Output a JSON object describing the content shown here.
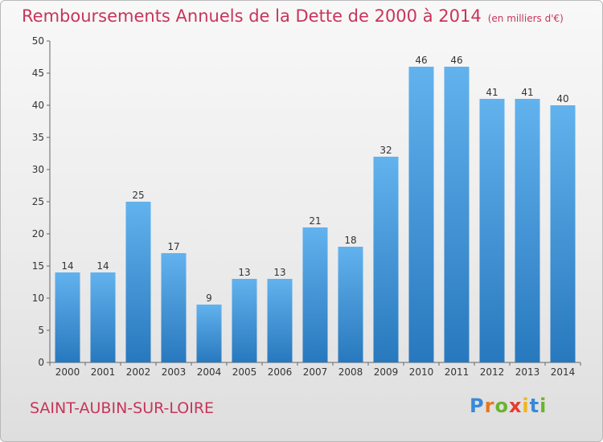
{
  "header": {
    "title": "Remboursements Annuels de la Dette de 2000 à 2014",
    "unit": "(en milliers d'€)"
  },
  "commune": "SAINT-AUBIN-SUR-LOIRE",
  "brand": {
    "letters": [
      "P",
      "r",
      "o",
      "x",
      "i",
      "t",
      "i"
    ],
    "colors": [
      "#3a88d8",
      "#e8771c",
      "#6ab42b",
      "#e83b2c",
      "#f0b51c",
      "#3a88d8",
      "#6ab42b"
    ]
  },
  "chart_data": {
    "type": "bar",
    "title": "Remboursements Annuels de la Dette de 2000 à 2014",
    "ylabel": "(en milliers d'€)",
    "xlabel": "",
    "categories": [
      "2000",
      "2001",
      "2002",
      "2003",
      "2004",
      "2005",
      "2006",
      "2007",
      "2008",
      "2009",
      "2010",
      "2011",
      "2012",
      "2013",
      "2014"
    ],
    "values": [
      14,
      14,
      25,
      17,
      9,
      13,
      13,
      21,
      18,
      32,
      46,
      46,
      41,
      41,
      40
    ],
    "ylim": [
      0,
      50
    ],
    "yticks": [
      0,
      5,
      10,
      15,
      20,
      25,
      30,
      35,
      40,
      45,
      50
    ],
    "grid": false,
    "bar_color": "#3d8fd6"
  }
}
